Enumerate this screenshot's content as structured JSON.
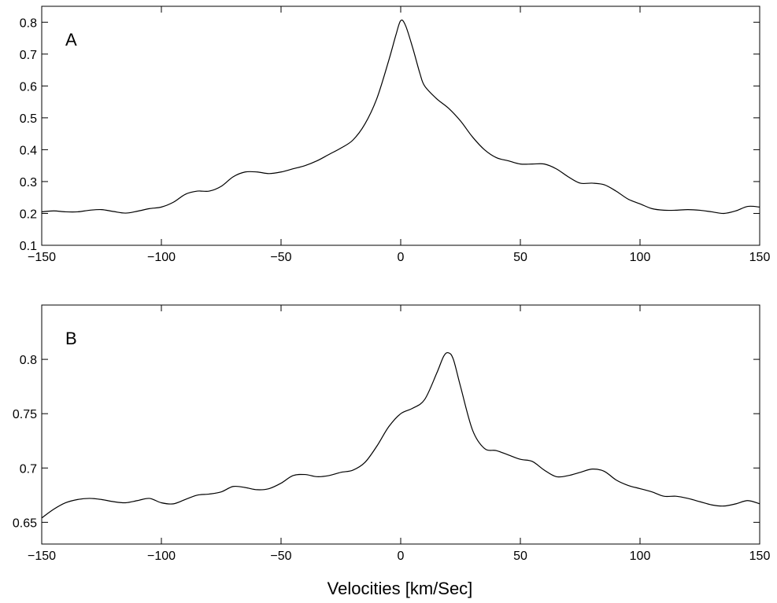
{
  "xlabel": "Velocities [km/Sec]",
  "chart_data": [
    {
      "type": "line",
      "panel_label": "A",
      "xlim": [
        -150,
        150
      ],
      "ylim": [
        0.1,
        0.85
      ],
      "xticks": [
        -150,
        -100,
        -50,
        0,
        50,
        100,
        150
      ],
      "xtick_labels": [
        "−150",
        "−100",
        "−50",
        "0",
        "50",
        "100",
        "150"
      ],
      "yticks": [
        0.1,
        0.2,
        0.3,
        0.4,
        0.5,
        0.6,
        0.7,
        0.8
      ],
      "ytick_labels": [
        "0.1",
        "0.2",
        "0.3",
        "0.4",
        "0.5",
        "0.6",
        "0.7",
        "0.8"
      ],
      "grid": false,
      "series": [
        {
          "x": [
            -150,
            -145,
            -140,
            -135,
            -130,
            -125,
            -120,
            -115,
            -110,
            -105,
            -100,
            -95,
            -90,
            -85,
            -80,
            -75,
            -70,
            -65,
            -60,
            -55,
            -50,
            -45,
            -40,
            -35,
            -30,
            -25,
            -20,
            -15,
            -10,
            -5,
            -2,
            0,
            2,
            5,
            8,
            10,
            15,
            20,
            25,
            30,
            35,
            40,
            45,
            50,
            55,
            60,
            65,
            70,
            75,
            80,
            85,
            90,
            95,
            100,
            105,
            110,
            115,
            120,
            125,
            130,
            135,
            140,
            145,
            150
          ],
          "y": [
            0.205,
            0.208,
            0.205,
            0.205,
            0.21,
            0.212,
            0.206,
            0.201,
            0.207,
            0.215,
            0.22,
            0.235,
            0.26,
            0.27,
            0.27,
            0.285,
            0.315,
            0.33,
            0.33,
            0.325,
            0.33,
            0.34,
            0.35,
            0.365,
            0.385,
            0.405,
            0.43,
            0.48,
            0.56,
            0.68,
            0.76,
            0.805,
            0.79,
            0.72,
            0.64,
            0.6,
            0.56,
            0.53,
            0.49,
            0.44,
            0.4,
            0.375,
            0.365,
            0.355,
            0.355,
            0.355,
            0.34,
            0.315,
            0.295,
            0.295,
            0.29,
            0.27,
            0.245,
            0.23,
            0.215,
            0.21,
            0.21,
            0.212,
            0.21,
            0.205,
            0.2,
            0.208,
            0.222,
            0.22
          ]
        }
      ]
    },
    {
      "type": "line",
      "panel_label": "B",
      "xlim": [
        -150,
        150
      ],
      "ylim": [
        0.63,
        0.85
      ],
      "xticks": [
        -150,
        -100,
        -50,
        0,
        50,
        100,
        150
      ],
      "xtick_labels": [
        "−150",
        "−100",
        "−50",
        "0",
        "50",
        "100",
        "150"
      ],
      "yticks": [
        0.65,
        0.7,
        0.75,
        0.8
      ],
      "ytick_labels": [
        "0.65",
        "0.7",
        "0.75",
        "0.8"
      ],
      "grid": false,
      "series": [
        {
          "x": [
            -150,
            -145,
            -140,
            -135,
            -130,
            -125,
            -120,
            -115,
            -110,
            -105,
            -100,
            -95,
            -90,
            -85,
            -80,
            -75,
            -70,
            -65,
            -60,
            -55,
            -50,
            -45,
            -40,
            -35,
            -30,
            -25,
            -20,
            -15,
            -10,
            -5,
            0,
            5,
            10,
            15,
            18,
            20,
            22,
            25,
            30,
            35,
            40,
            45,
            50,
            55,
            60,
            65,
            70,
            75,
            80,
            85,
            90,
            95,
            100,
            105,
            110,
            115,
            120,
            125,
            130,
            135,
            140,
            145,
            150
          ],
          "y": [
            0.654,
            0.662,
            0.668,
            0.671,
            0.672,
            0.671,
            0.669,
            0.668,
            0.67,
            0.672,
            0.668,
            0.667,
            0.671,
            0.675,
            0.676,
            0.678,
            0.683,
            0.682,
            0.68,
            0.681,
            0.686,
            0.693,
            0.694,
            0.692,
            0.693,
            0.696,
            0.698,
            0.705,
            0.72,
            0.738,
            0.75,
            0.755,
            0.763,
            0.787,
            0.803,
            0.806,
            0.8,
            0.775,
            0.735,
            0.718,
            0.716,
            0.712,
            0.708,
            0.706,
            0.698,
            0.692,
            0.693,
            0.696,
            0.699,
            0.697,
            0.689,
            0.684,
            0.681,
            0.678,
            0.674,
            0.674,
            0.672,
            0.669,
            0.666,
            0.665,
            0.667,
            0.67,
            0.667
          ]
        }
      ]
    }
  ]
}
